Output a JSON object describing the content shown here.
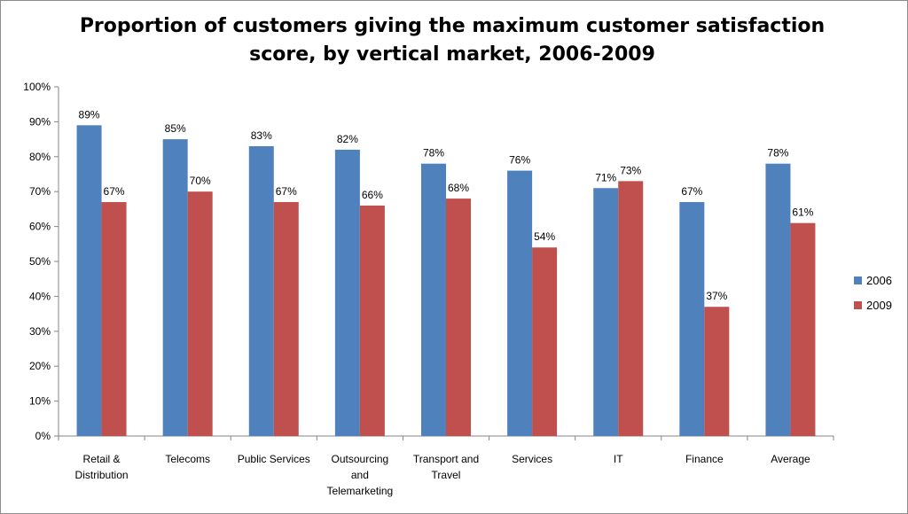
{
  "chart_data": {
    "type": "bar",
    "title_line1": "Proportion of customers giving the maximum customer satisfaction",
    "title_line2": "score, by vertical market, 2006-2009",
    "categories": [
      [
        "Retail &",
        "Distribution"
      ],
      [
        "Telecoms"
      ],
      [
        "Public Services"
      ],
      [
        "Outsourcing",
        "and",
        "Telemarketing"
      ],
      [
        "Transport and",
        "Travel"
      ],
      [
        "Services"
      ],
      [
        "IT"
      ],
      [
        "Finance"
      ],
      [
        "Average"
      ]
    ],
    "series": [
      {
        "name": "2006",
        "color": "#4f81bd",
        "values": [
          89,
          85,
          83,
          82,
          78,
          76,
          71,
          67,
          78
        ],
        "labels": [
          "89%",
          "85%",
          "83%",
          "82%",
          "78%",
          "76%",
          "71%",
          "67%",
          "78%"
        ]
      },
      {
        "name": "2009",
        "color": "#c0504d",
        "values": [
          67,
          70,
          67,
          66,
          68,
          54,
          73,
          37,
          61
        ],
        "labels": [
          "67%",
          "70%",
          "67%",
          "66%",
          "68%",
          "54%",
          "73%",
          "37%",
          "61%"
        ]
      }
    ],
    "ylim": [
      0,
      100
    ],
    "yticks": [
      0,
      10,
      20,
      30,
      40,
      50,
      60,
      70,
      80,
      90,
      100
    ],
    "ytick_labels": [
      "0%",
      "10%",
      "20%",
      "30%",
      "40%",
      "50%",
      "60%",
      "70%",
      "80%",
      "90%",
      "100%"
    ],
    "grid": false,
    "legend_position": "right"
  }
}
